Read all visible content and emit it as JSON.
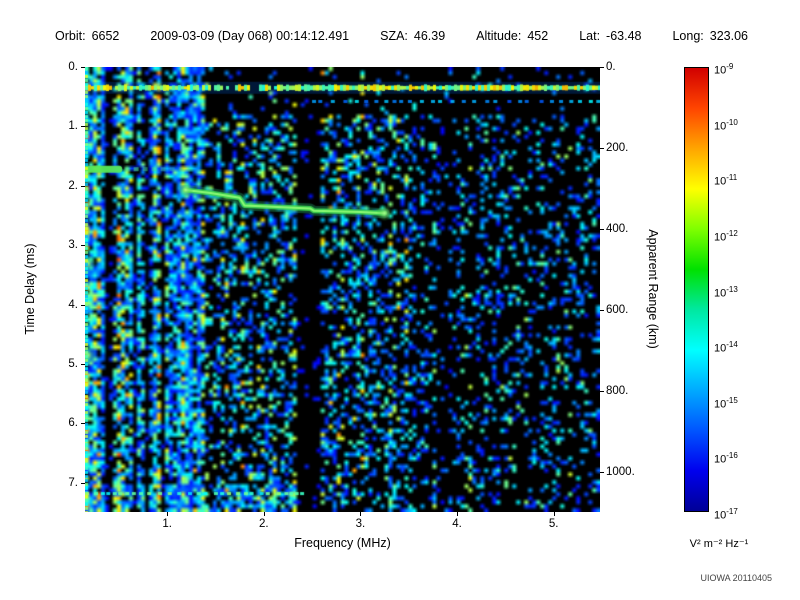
{
  "header": {
    "fields": [
      {
        "key": "orbit",
        "label": "Orbit:",
        "value": "6652"
      },
      {
        "key": "timestamp",
        "label": "",
        "value": "2009-03-09 (Day 068) 00:14:12.491"
      },
      {
        "key": "sza",
        "label": "SZA:",
        "value": "46.39"
      },
      {
        "key": "altitude",
        "label": "Altitude:",
        "value": "452"
      },
      {
        "key": "lat",
        "label": "Lat:",
        "value": "-63.48"
      },
      {
        "key": "long",
        "label": "Long:",
        "value": "323.06"
      }
    ]
  },
  "footer": {
    "credit": "UIOWA 20110405"
  },
  "chart_data": {
    "type": "heatmap",
    "title": "",
    "xlabel": "Frequency (MHz)",
    "ylabel": "Time Delay (ms)",
    "y2label": "Apparent Range (km)",
    "x_range": [
      0.15,
      5.48
    ],
    "x_ticks": [
      1,
      2,
      3,
      4,
      5
    ],
    "x_tick_labels": [
      "1.",
      "2.",
      "3.",
      "4.",
      "5."
    ],
    "y_range": [
      0,
      7.49
    ],
    "y_ticks": [
      0,
      1,
      2,
      3,
      4,
      5,
      6,
      7
    ],
    "y_tick_labels": [
      "0.",
      "1.",
      "2.",
      "3.",
      "4.",
      "5.",
      "6.",
      "7."
    ],
    "y2_range": [
      0,
      1100
    ],
    "y2_ticks": [
      0,
      200,
      400,
      600,
      800,
      1000
    ],
    "y2_tick_labels": [
      "0.",
      "200.",
      "400.",
      "600.",
      "800.",
      "1000."
    ],
    "grid": false,
    "colorbar": {
      "unit_label": "V² m⁻² Hz⁻¹",
      "tick_exponents": [
        -9,
        -10,
        -11,
        -12,
        -13,
        -14,
        -15,
        -16,
        -17
      ],
      "top_color": "#ff0000",
      "bottom_color": "#000096",
      "gradient": [
        "#d10000",
        "#ff4500",
        "#ffa500",
        "#ffff00",
        "#7fff00",
        "#00e100",
        "#00e8a0",
        "#00ffff",
        "#00aaff",
        "#0055ff",
        "#0000ee",
        "#000096"
      ]
    },
    "features": {
      "background_color": "#000000",
      "surface_echo_delay_ms": 0.35,
      "ionosphere_trace_points": [
        [
          1.19,
          2.07
        ],
        [
          1.45,
          2.12
        ],
        [
          1.75,
          2.2
        ],
        [
          1.8,
          2.33
        ],
        [
          2.2,
          2.36
        ],
        [
          2.48,
          2.38
        ],
        [
          2.52,
          2.42
        ],
        [
          3.0,
          2.44
        ],
        [
          3.25,
          2.46
        ]
      ],
      "low_band_max_mhz": 1.38,
      "dark_bands_mhz": [
        [
          2.33,
          2.58
        ],
        [
          3.78,
          3.96
        ]
      ],
      "left_echo_delay_ms": 1.72,
      "left_edge_blobs_ms": [
        3.3,
        4.85
      ],
      "noise_seed": 20110405
    }
  }
}
